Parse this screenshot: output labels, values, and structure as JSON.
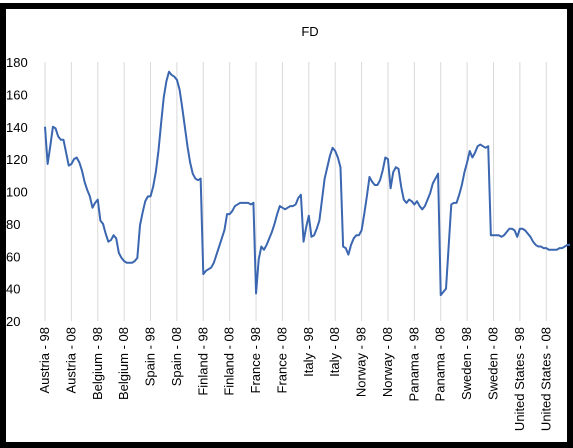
{
  "chart_data": {
    "type": "line",
    "title": "FD",
    "categories": [
      "Austria - 98",
      null,
      null,
      null,
      null,
      null,
      null,
      null,
      null,
      null,
      "Austria - 08",
      null,
      null,
      null,
      null,
      null,
      null,
      null,
      null,
      null,
      "Belgium - 98",
      null,
      null,
      null,
      null,
      null,
      null,
      null,
      null,
      null,
      "Belgium - 08",
      null,
      null,
      null,
      null,
      null,
      null,
      null,
      null,
      null,
      "Spain - 98",
      null,
      null,
      null,
      null,
      null,
      null,
      null,
      null,
      null,
      "Spain - 08",
      null,
      null,
      null,
      null,
      null,
      null,
      null,
      null,
      null,
      "Finland - 98",
      null,
      null,
      null,
      null,
      null,
      null,
      null,
      null,
      null,
      "Finland - 08",
      null,
      null,
      null,
      null,
      null,
      null,
      null,
      null,
      null,
      "France - 98",
      null,
      null,
      null,
      null,
      null,
      null,
      null,
      null,
      null,
      "France - 08",
      null,
      null,
      null,
      null,
      null,
      null,
      null,
      null,
      null,
      "Italy - 98",
      null,
      null,
      null,
      null,
      null,
      null,
      null,
      null,
      null,
      "Italy - 08",
      null,
      null,
      null,
      null,
      null,
      null,
      null,
      null,
      null,
      "Norway - 98",
      null,
      null,
      null,
      null,
      null,
      null,
      null,
      null,
      null,
      "Norway - 08",
      null,
      null,
      null,
      null,
      null,
      null,
      null,
      null,
      null,
      "Panama - 98",
      null,
      null,
      null,
      null,
      null,
      null,
      null,
      null,
      null,
      "Panama - 08",
      null,
      null,
      null,
      null,
      null,
      null,
      null,
      null,
      null,
      "Sweden - 98",
      null,
      null,
      null,
      null,
      null,
      null,
      null,
      null,
      null,
      "Sweden - 08",
      null,
      null,
      null,
      null,
      null,
      null,
      null,
      null,
      null,
      "United States - 98",
      null,
      null,
      null,
      null,
      null,
      null,
      null,
      null,
      null,
      "United States - 08",
      null,
      null,
      null,
      null,
      null,
      null,
      null,
      null,
      null
    ],
    "values": [
      140,
      117,
      128,
      140,
      139,
      134,
      132,
      132,
      124,
      116,
      117,
      120,
      121,
      118,
      113,
      106,
      101,
      97,
      90,
      93,
      95,
      82,
      80,
      74,
      69,
      70,
      73,
      71,
      62,
      59,
      57,
      56,
      56,
      56,
      57,
      59,
      79,
      87,
      94,
      97,
      97,
      103,
      112,
      125,
      142,
      158,
      168,
      174,
      172,
      171,
      169,
      163,
      152,
      140,
      128,
      118,
      111,
      108,
      107,
      108,
      49,
      51,
      52,
      53,
      56,
      61,
      66,
      71,
      76,
      86,
      86,
      88,
      91,
      92,
      93,
      93,
      93,
      93,
      92,
      93,
      37,
      58,
      66,
      64,
      67,
      71,
      75,
      80,
      86,
      91,
      90,
      89,
      90,
      91,
      91,
      92,
      96,
      98,
      69,
      78,
      85,
      72,
      73,
      77,
      82,
      95,
      108,
      115,
      122,
      127,
      125,
      121,
      115,
      66,
      65,
      61,
      67,
      71,
      73,
      73,
      76,
      86,
      97,
      109,
      106,
      104,
      104,
      107,
      113,
      121,
      120,
      102,
      112,
      115,
      114,
      103,
      95,
      93,
      95,
      94,
      92,
      94,
      91,
      89,
      91,
      95,
      99,
      105,
      108,
      111,
      36,
      38,
      40,
      66,
      92,
      93,
      93,
      98,
      104,
      112,
      118,
      125,
      121,
      124,
      128,
      129,
      128,
      127,
      128,
      73,
      73,
      73,
      73,
      72,
      73,
      75,
      77,
      77,
      76,
      72,
      77,
      77,
      76,
      74,
      72,
      69,
      67,
      66,
      66,
      65,
      65,
      64,
      64,
      64,
      64,
      65,
      65,
      66,
      67,
      67
    ],
    "color": "#3b66b0",
    "ylim": [
      20,
      180
    ],
    "yticks": [
      20,
      40,
      60,
      80,
      100,
      120,
      140,
      160,
      180
    ],
    "grid": true
  }
}
